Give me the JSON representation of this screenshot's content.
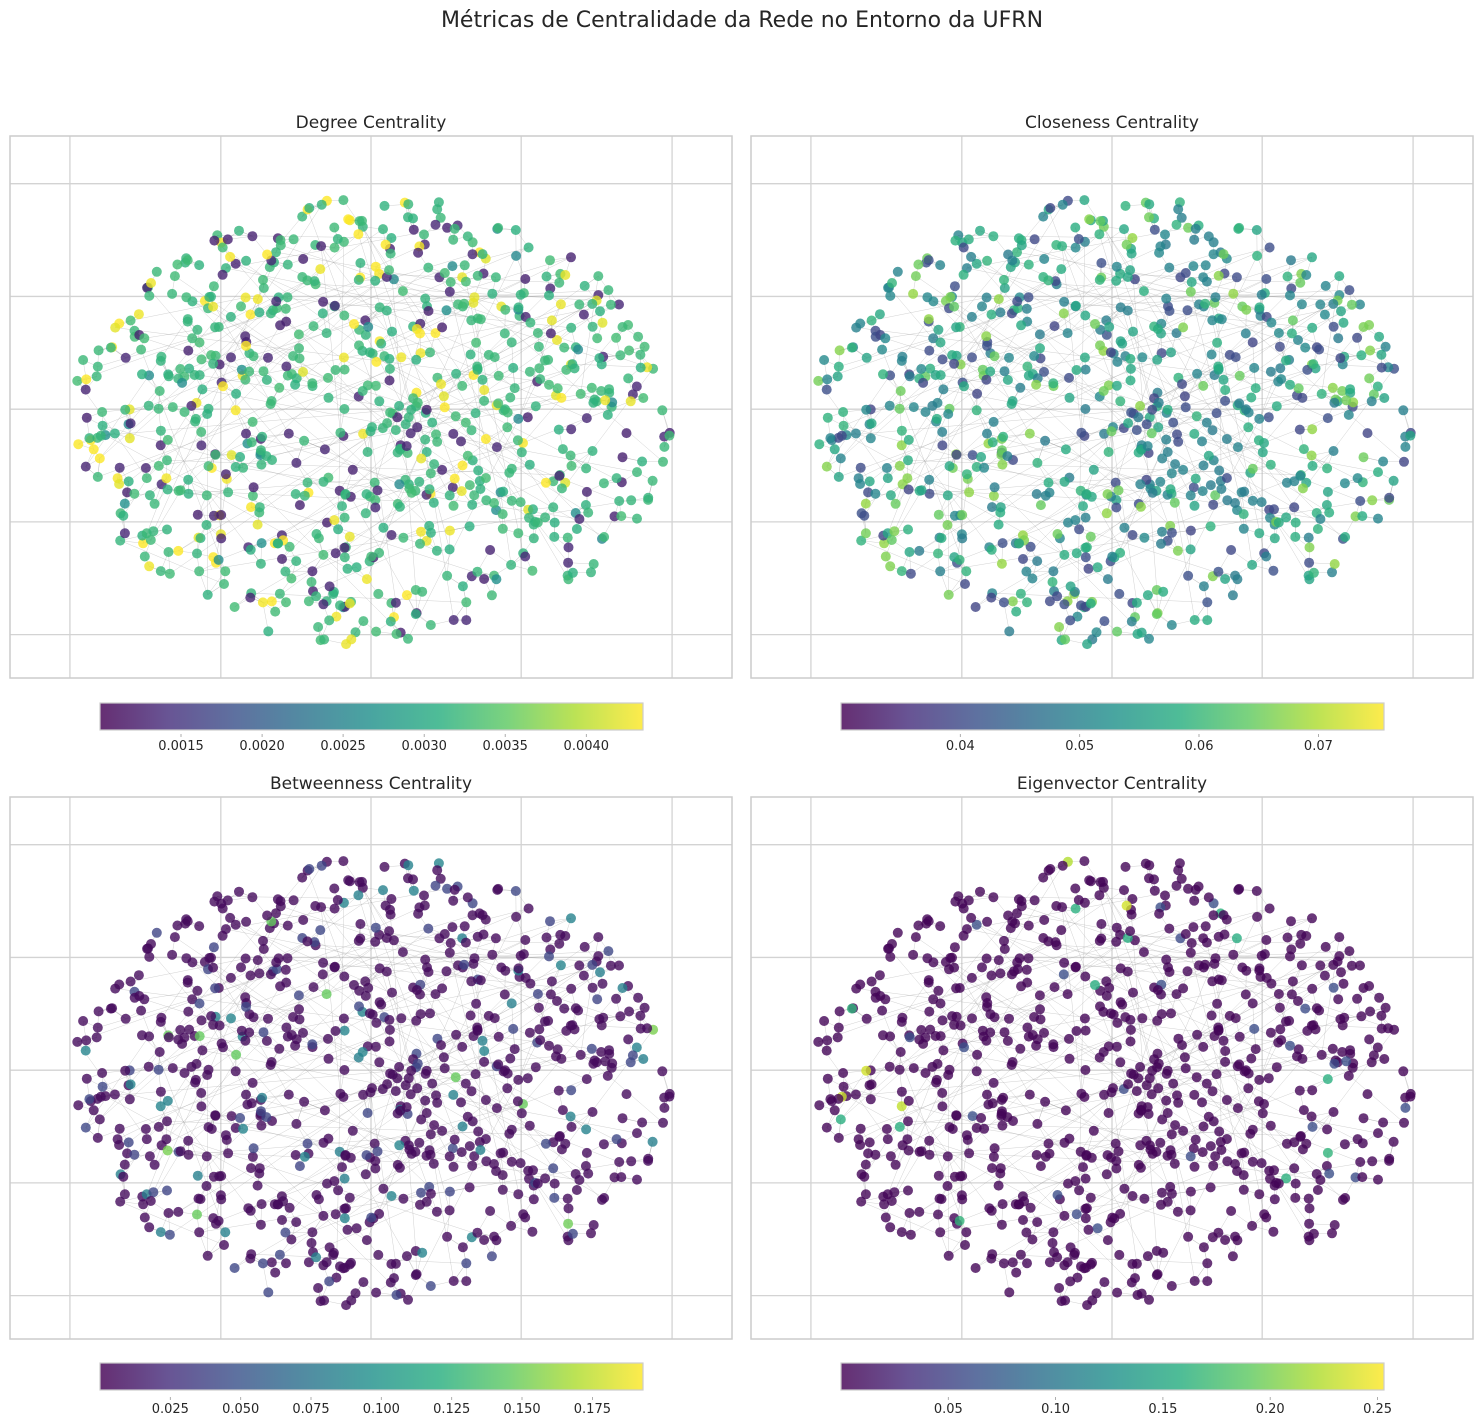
{
  "title": "Métricas de Centralidade da Rede no Entorno da UFRN",
  "colormap": "viridis",
  "edge_color": "#999999",
  "grid_color": "#d3d3d3",
  "chart_data": [
    {
      "type": "scatter",
      "title": "Degree Centrality",
      "node_count": 800,
      "grid": true,
      "colorbar": {
        "min": 0.001,
        "max": 0.00435,
        "ticks": [
          "0.0015",
          "0.0020",
          "0.0025",
          "0.0030",
          "0.0035",
          "0.0040"
        ],
        "tick_values": [
          0.0015,
          0.002,
          0.0025,
          0.003,
          0.0035,
          0.004
        ]
      },
      "value_distribution": [
        {
          "value": 0.0013,
          "share": 0.17
        },
        {
          "value": 0.0026,
          "share": 0.03
        },
        {
          "value": 0.0032,
          "share": 0.65
        },
        {
          "value": 0.0043,
          "share": 0.15
        }
      ]
    },
    {
      "type": "scatter",
      "title": "Closeness Centrality",
      "node_count": 800,
      "grid": true,
      "colorbar": {
        "min": 0.03,
        "max": 0.0755,
        "ticks": [
          "0.04",
          "0.05",
          "0.06",
          "0.07"
        ],
        "tick_values": [
          0.04,
          0.05,
          0.06,
          0.07
        ]
      },
      "value_distribution": [
        {
          "value": 0.04,
          "share": 0.2
        },
        {
          "value": 0.05,
          "share": 0.35
        },
        {
          "value": 0.058,
          "share": 0.3
        },
        {
          "value": 0.066,
          "share": 0.15
        }
      ]
    },
    {
      "type": "scatter",
      "title": "Betweenness Centrality",
      "node_count": 800,
      "grid": true,
      "colorbar": {
        "min": 0.0,
        "max": 0.193,
        "ticks": [
          "0.025",
          "0.050",
          "0.075",
          "0.100",
          "0.125",
          "0.150",
          "0.175"
        ],
        "tick_values": [
          0.025,
          0.05,
          0.075,
          0.1,
          0.125,
          0.15,
          0.175
        ]
      },
      "value_distribution": [
        {
          "value": 0.005,
          "share": 0.8
        },
        {
          "value": 0.04,
          "share": 0.12
        },
        {
          "value": 0.085,
          "share": 0.06
        },
        {
          "value": 0.15,
          "share": 0.02
        }
      ]
    },
    {
      "type": "scatter",
      "title": "Eigenvector Centrality",
      "node_count": 800,
      "grid": true,
      "colorbar": {
        "min": 0.0,
        "max": 0.253,
        "ticks": [
          "0.05",
          "0.10",
          "0.15",
          "0.20",
          "0.25"
        ],
        "tick_values": [
          0.05,
          0.1,
          0.15,
          0.2,
          0.25
        ]
      },
      "value_distribution": [
        {
          "value": 0.003,
          "share": 0.95
        },
        {
          "value": 0.06,
          "share": 0.03
        },
        {
          "value": 0.16,
          "share": 0.015
        },
        {
          "value": 0.23,
          "share": 0.005
        }
      ]
    }
  ]
}
